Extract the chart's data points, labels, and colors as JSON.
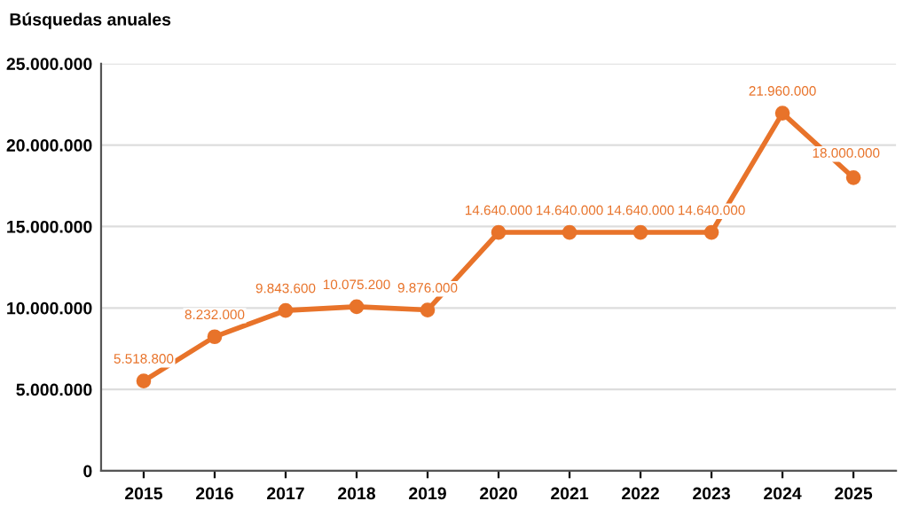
{
  "chart_data": {
    "type": "line",
    "title": "Búsquedas anuales",
    "categories": [
      "2015",
      "2016",
      "2017",
      "2018",
      "2019",
      "2020",
      "2021",
      "2022",
      "2023",
      "2024",
      "2025"
    ],
    "series": [
      {
        "color": "#e8732a",
        "values": [
          5518800,
          8232000,
          9843600,
          10075200,
          9876000,
          14640000,
          14640000,
          14640000,
          14640000,
          21960000,
          18000000
        ],
        "value_labels": [
          "5.518.800",
          "8.232.000",
          "9.843.600",
          "10.075.200",
          "9.876.000",
          "14.640.000",
          "14.640.000",
          "14.640.000",
          "14.640.000",
          "21.960.000",
          "18.000.000"
        ]
      }
    ],
    "ylim": [
      0,
      25000000
    ],
    "yticks": [
      0,
      {
        "value": 5000000,
        "label": "5.000.000"
      },
      {
        "value": 10000000,
        "label": "10.000.000"
      },
      {
        "value": 15000000,
        "label": "15.000.000"
      },
      {
        "value": 20000000,
        "label": "20.000.000"
      },
      {
        "value": 25000000,
        "label": "25.000.000"
      }
    ],
    "grid": "y",
    "marker": "circle",
    "line_style": "solid"
  }
}
